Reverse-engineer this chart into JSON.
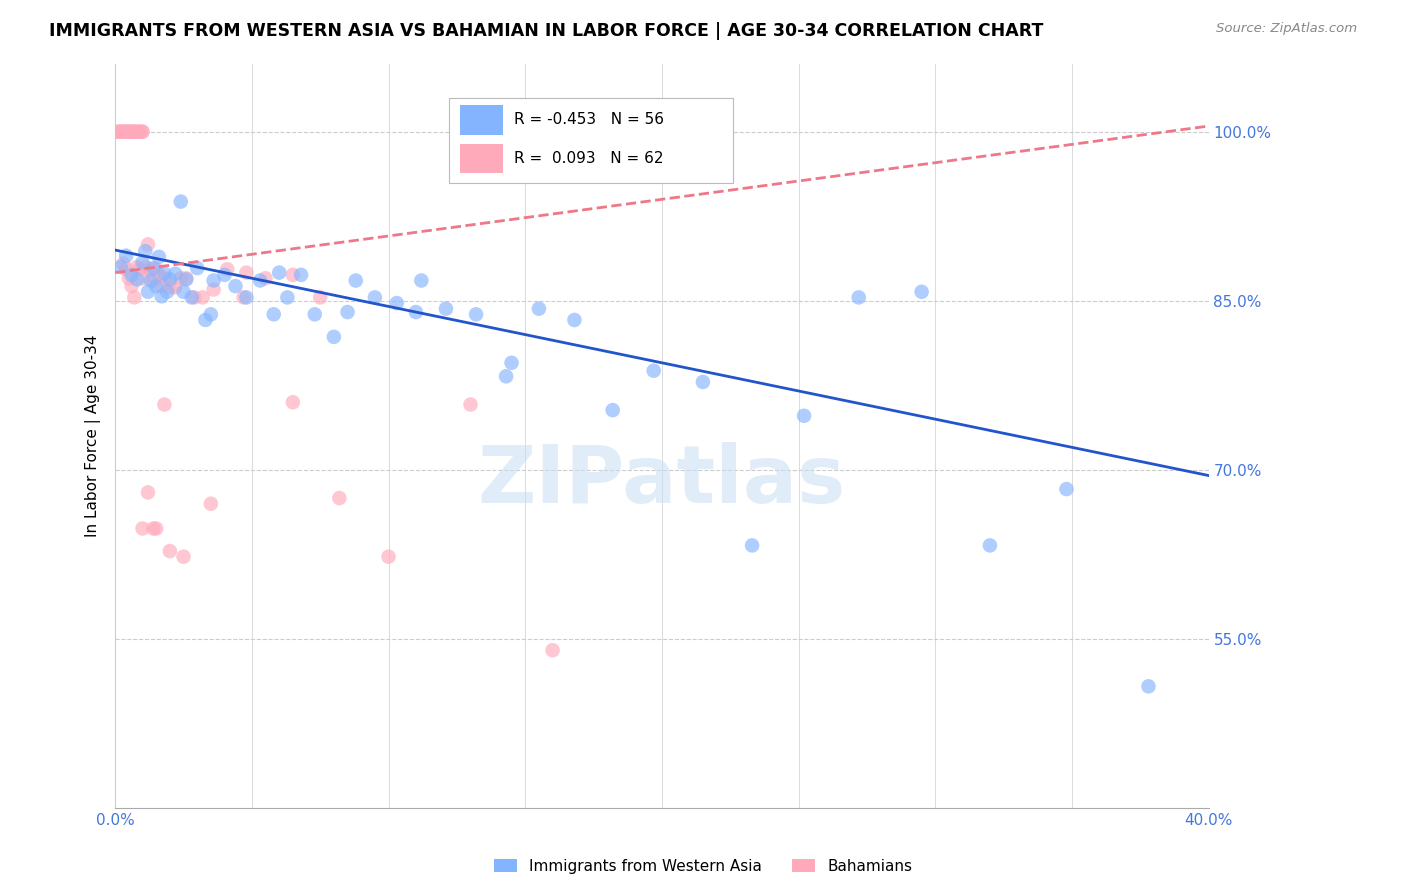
{
  "title": "IMMIGRANTS FROM WESTERN ASIA VS BAHAMIAN IN LABOR FORCE | AGE 30-34 CORRELATION CHART",
  "source_text": "Source: ZipAtlas.com",
  "ylabel": "In Labor Force | Age 30-34",
  "xlim": [
    0.0,
    0.4
  ],
  "ylim": [
    0.4,
    1.06
  ],
  "yticks": [
    0.55,
    0.7,
    0.85,
    1.0
  ],
  "ytick_labels": [
    "55.0%",
    "70.0%",
    "85.0%",
    "100.0%"
  ],
  "xticks": [
    0.0,
    0.05,
    0.1,
    0.15,
    0.2,
    0.25,
    0.3,
    0.35,
    0.4
  ],
  "xtick_labels": [
    "0.0%",
    "",
    "",
    "",
    "",
    "",
    "",
    "",
    "40.0%"
  ],
  "legend_r_blue": "-0.453",
  "legend_n_blue": "56",
  "legend_r_pink": " 0.093",
  "legend_n_pink": "62",
  "blue_color": "#85b4ff",
  "pink_color": "#ffaabb",
  "trendline_blue_color": "#2255cc",
  "trendline_pink_color": "#ee7788",
  "axis_label_color": "#4477dd",
  "grid_color": "#cccccc",
  "background_color": "#ffffff",
  "watermark_color": "#c8dff5",
  "trendline_blue_x0": 0.0,
  "trendline_blue_y0": 0.895,
  "trendline_blue_x1": 0.4,
  "trendline_blue_y1": 0.695,
  "trendline_pink_x0": 0.0,
  "trendline_pink_y0": 0.875,
  "trendline_pink_x1": 0.4,
  "trendline_pink_y1": 1.005,
  "blue_scatter_x": [
    0.002,
    0.004,
    0.006,
    0.008,
    0.01,
    0.011,
    0.012,
    0.013,
    0.014,
    0.015,
    0.016,
    0.017,
    0.018,
    0.019,
    0.02,
    0.022,
    0.024,
    0.026,
    0.028,
    0.03,
    0.033,
    0.036,
    0.04,
    0.044,
    0.048,
    0.053,
    0.058,
    0.063,
    0.068,
    0.073,
    0.08,
    0.088,
    0.095,
    0.103,
    0.112,
    0.121,
    0.132,
    0.143,
    0.155,
    0.168,
    0.182,
    0.197,
    0.215,
    0.233,
    0.252,
    0.272,
    0.295,
    0.32,
    0.348,
    0.378,
    0.025,
    0.035,
    0.06,
    0.085,
    0.11,
    0.145
  ],
  "blue_scatter_y": [
    0.88,
    0.89,
    0.873,
    0.869,
    0.884,
    0.894,
    0.858,
    0.868,
    0.879,
    0.863,
    0.889,
    0.854,
    0.874,
    0.858,
    0.869,
    0.874,
    0.938,
    0.869,
    0.853,
    0.879,
    0.833,
    0.868,
    0.873,
    0.863,
    0.853,
    0.868,
    0.838,
    0.853,
    0.873,
    0.838,
    0.818,
    0.868,
    0.853,
    0.848,
    0.868,
    0.843,
    0.838,
    0.783,
    0.843,
    0.833,
    0.753,
    0.788,
    0.778,
    0.633,
    0.748,
    0.853,
    0.858,
    0.633,
    0.683,
    0.508,
    0.858,
    0.838,
    0.875,
    0.84,
    0.84,
    0.795
  ],
  "pink_scatter_x": [
    0.001,
    0.001,
    0.002,
    0.002,
    0.003,
    0.003,
    0.004,
    0.004,
    0.005,
    0.005,
    0.006,
    0.006,
    0.007,
    0.007,
    0.008,
    0.008,
    0.009,
    0.009,
    0.01,
    0.01,
    0.011,
    0.012,
    0.013,
    0.014,
    0.015,
    0.016,
    0.017,
    0.018,
    0.02,
    0.022,
    0.024,
    0.026,
    0.029,
    0.032,
    0.036,
    0.041,
    0.047,
    0.055,
    0.065,
    0.075,
    0.003,
    0.004,
    0.005,
    0.006,
    0.007,
    0.008,
    0.009,
    0.01,
    0.012,
    0.014,
    0.018,
    0.025,
    0.035,
    0.048,
    0.065,
    0.082,
    0.1,
    0.13,
    0.16,
    0.01,
    0.015,
    0.02
  ],
  "pink_scatter_y": [
    1.0,
    1.0,
    1.0,
    1.0,
    1.0,
    1.0,
    1.0,
    1.0,
    1.0,
    1.0,
    1.0,
    1.0,
    1.0,
    1.0,
    1.0,
    1.0,
    1.0,
    1.0,
    1.0,
    1.0,
    0.88,
    0.9,
    0.878,
    0.868,
    0.878,
    0.873,
    0.863,
    0.87,
    0.862,
    0.862,
    0.87,
    0.87,
    0.853,
    0.853,
    0.86,
    0.878,
    0.853,
    0.87,
    0.873,
    0.853,
    0.883,
    0.878,
    0.87,
    0.863,
    0.853,
    0.88,
    0.878,
    0.648,
    0.68,
    0.648,
    0.758,
    0.623,
    0.67,
    0.875,
    0.76,
    0.675,
    0.623,
    0.758,
    0.54,
    0.87,
    0.648,
    0.628
  ]
}
